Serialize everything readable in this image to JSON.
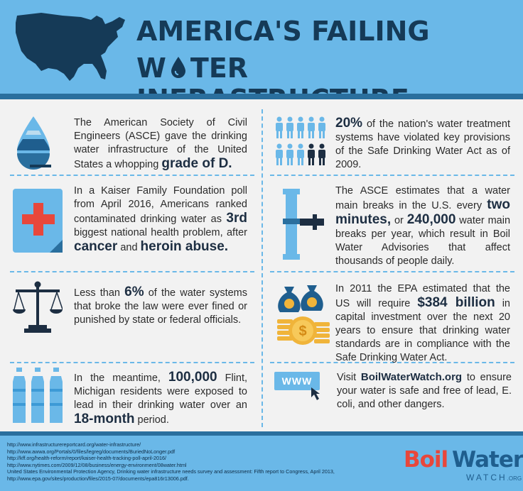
{
  "header": {
    "title_line1": "AMERICA'S FAILING",
    "title_line2_a": "W",
    "title_line2_b": "TER INFRASTRUCTURE"
  },
  "facts": {
    "asce": {
      "text": "The American Society of Civil Engineers (ASCE) gave the drinking water infrastructure of the United States a whopping",
      "highlight": "grade of D."
    },
    "violations": {
      "highlight": "20%",
      "text": "of the nation's water treatment systems have violated key provisions of the Safe Drinking Water Act as of 2009."
    },
    "kaiser": {
      "text_a": "In a Kaiser Family Foundation poll from April 2016, Americans ranked contaminated drinking water as",
      "highlight_a": "3rd",
      "text_b": "biggest national health problem, after",
      "highlight_b": "cancer",
      "text_c": "and",
      "highlight_c": "heroin abuse."
    },
    "main_breaks": {
      "text_a": "The ASCE estimates that a water main breaks in the U.S. every",
      "highlight_a": "two minutes,",
      "text_b": "or",
      "highlight_b": "240,000",
      "text_c": "water main breaks per year, which result in Boil Water Advisories that affect thousands of people daily."
    },
    "enforcement": {
      "text_a": "Less than",
      "highlight": "6%",
      "text_b": "of the water systems that broke the law were ever fined or punished by state or federal officials."
    },
    "epa": {
      "text_a": "In 2011 the EPA estimated that the US will require",
      "highlight": "$384 billion",
      "text_b": "in capital investment over the next 20 years to ensure that drinking water standards are in compliance with the Safe Drinking Water Act."
    },
    "flint": {
      "text_a": "In the meantime,",
      "highlight_a": "100,000",
      "text_b": "Flint, Michigan residents were exposed to lead in their drinking water over an",
      "highlight_b": "18-month",
      "text_c": "period."
    },
    "visit": {
      "www": "WWW",
      "text_a": "Visit",
      "site": "BoilWaterWatch.org",
      "text_b": "to ensure your water is safe and free of lead, E. coli, and other dangers."
    }
  },
  "references": [
    "http://www.infrastructurereportcard.org/water-infrastructure/",
    "http://www.awwa.org/Portals/0/files/legreg/documents/BuriedNoLonger.pdf",
    "http://kff.org/health-reform/report/kaiser-health-tracking-poll-april-2016/",
    "http://www.nytimes.com/2009/12/08/business/energy-environment/08water.html",
    "United States Environmental Protection Agency, Drinking water infrastructure needs survey and assessment: Fifth report to Congress, April 2013,",
    "http://www.epa.gov/sites/production/files/2015-07/documents/epa816r13006.pdf."
  ],
  "logo": {
    "boil": "Boil",
    "water": "Water",
    "watch": "WATCH",
    "org": ".ORG"
  },
  "colors": {
    "header_blue": "#6ab8e8",
    "dark_blue": "#153a57",
    "accent_red": "#e8473b"
  }
}
